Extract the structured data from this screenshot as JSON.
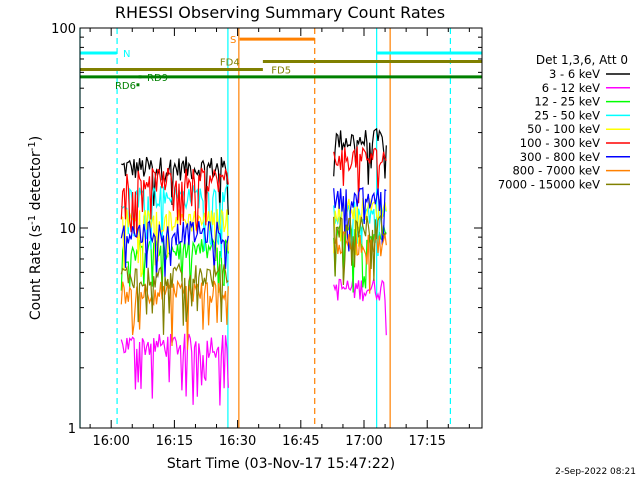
{
  "chart_data": {
    "type": "line",
    "title": "RHESSI Observing Summary Count Rates",
    "xlabel": "Start Time (03-Nov-17 15:47:22)",
    "ylabel": "Count Rate (s",
    "ylabel_sup": "-1",
    "ylabel_mid": " detector",
    "ylabel_end": ")",
    "yscale": "log",
    "xlim_min": [
      -7.4,
      88
    ],
    "ylim": [
      1,
      100
    ],
    "x_ticks": [
      {
        "min": 0,
        "label": "16:00"
      },
      {
        "min": 15,
        "label": "16:15"
      },
      {
        "min": 30,
        "label": "16:30"
      },
      {
        "min": 45,
        "label": "16:45"
      },
      {
        "min": 60,
        "label": "17:00"
      },
      {
        "min": 75,
        "label": "17:15"
      }
    ],
    "y_ticks": [
      {
        "value": 1,
        "label": "1"
      },
      {
        "value": 10,
        "label": "10"
      },
      {
        "value": 100,
        "label": "100"
      }
    ],
    "legend_title": "Det 1,3,6, Att 0",
    "legend_position": "right",
    "series": [
      {
        "name": "3 - 6 keV",
        "color": "#000000",
        "seg1": 20,
        "seg2": 27.5
      },
      {
        "name": "6 - 12 keV",
        "color": "#ff00ff",
        "seg1": 2.6,
        "seg2": 5.0
      },
      {
        "name": "12 - 25 keV",
        "color": "#00ff00",
        "seg1": 7.8,
        "seg2": 9.3
      },
      {
        "name": "25 - 50 keV",
        "color": "#00ffff",
        "seg1": 14.5,
        "seg2": 12.0
      },
      {
        "name": "50 - 100 keV",
        "color": "#ffff00",
        "seg1": 11.0,
        "seg2": 12.5
      },
      {
        "name": "100 - 300 keV",
        "color": "#ff0000",
        "seg1": 17.5,
        "seg2": 22.5
      },
      {
        "name": "300 - 800 keV",
        "color": "#0000ff",
        "seg1": 9.5,
        "seg2": 14.0
      },
      {
        "name": "800 - 7000 keV",
        "color": "#ff8000",
        "seg1": 4.8,
        "seg2": 8.4
      },
      {
        "name": "7000 - 15000 keV",
        "color": "#808000",
        "seg1": 5.8,
        "seg2": 10.2
      }
    ],
    "data_segments": [
      {
        "start": 2.4,
        "end": 27.8
      },
      {
        "start": 52.8,
        "end": 65.3
      }
    ],
    "flag_bars": [
      {
        "label": "N",
        "color": "#00ffff",
        "value": 75,
        "start": -7.4,
        "end": 1.3,
        "label_at": 2.8
      },
      {
        "label": "N",
        "color": "#00ffff",
        "value": 75,
        "start": 63.0,
        "end": 88.0,
        "label_at": null
      },
      {
        "label": "S",
        "color": "#ff8000",
        "value": 88,
        "start": 30.5,
        "end": 48.3,
        "label_at": 28.2
      },
      {
        "label": "FD4",
        "color": "#808000",
        "value": 68,
        "start": 36.0,
        "end": 88.0,
        "label_at": 25.8
      },
      {
        "label": "FD5",
        "color": "#808000",
        "value": 62,
        "start": -7.4,
        "end": 36.0,
        "label_at": 38.0
      },
      {
        "label": "RD9",
        "color": "#008000",
        "value": 57,
        "start": 6.5,
        "end": 7.2,
        "label_at": 8.5
      },
      {
        "label": "RD9",
        "color": "#008000",
        "value": 57,
        "start": -7.4,
        "end": 88.0,
        "label_at": null
      },
      {
        "label": "RD6",
        "color": "#008000",
        "value": 52,
        "start": 6.0,
        "end": 6.7,
        "label_at": 0.9
      }
    ],
    "vertical_lines": [
      {
        "min": -7.4,
        "color": "#00ffff",
        "style": "solid"
      },
      {
        "min": 1.4,
        "color": "#00ffff",
        "style": "dashed"
      },
      {
        "min": 27.7,
        "color": "#00ffff",
        "style": "solid"
      },
      {
        "min": 30.3,
        "color": "#ff8000",
        "style": "solid"
      },
      {
        "min": 48.3,
        "color": "#ff8000",
        "style": "dashed"
      },
      {
        "min": 63.0,
        "color": "#00ffff",
        "style": "solid"
      },
      {
        "min": 66.2,
        "color": "#ff8000",
        "style": "solid"
      },
      {
        "min": 80.5,
        "color": "#00ffff",
        "style": "dashed"
      }
    ]
  },
  "footer": {
    "timestamp": "2-Sep-2022 08:21"
  }
}
